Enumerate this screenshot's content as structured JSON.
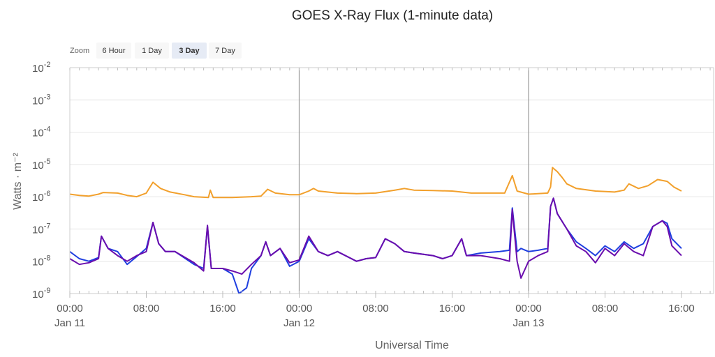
{
  "chart_data": {
    "type": "line",
    "title": "GOES X-Ray Flux (1-minute data)",
    "xlabel": "Universal Time",
    "ylabel": "Watts · m⁻²",
    "yscale": "log",
    "ylim": [
      1e-09,
      0.01
    ],
    "xlim_hours": [
      0,
      64
    ],
    "grid": true,
    "zoom": {
      "label": "Zoom",
      "buttons": [
        "6 Hour",
        "1 Day",
        "3 Day",
        "7 Day"
      ],
      "selected": "3 Day"
    },
    "x_ticks": [
      {
        "label": "00:00",
        "date": "Jan 11"
      },
      {
        "label": "08:00",
        "date": ""
      },
      {
        "label": "16:00",
        "date": ""
      },
      {
        "label": "00:00",
        "date": "Jan 12"
      },
      {
        "label": "08:00",
        "date": ""
      },
      {
        "label": "16:00",
        "date": ""
      },
      {
        "label": "00:00",
        "date": "Jan 13"
      },
      {
        "label": "08:00",
        "date": ""
      },
      {
        "label": "16:00",
        "date": ""
      }
    ],
    "y_ticks": [
      {
        "base": "10",
        "exp": "-9"
      },
      {
        "base": "10",
        "exp": "-8"
      },
      {
        "base": "10",
        "exp": "-7"
      },
      {
        "base": "10",
        "exp": "-6"
      },
      {
        "base": "10",
        "exp": "-5"
      },
      {
        "base": "10",
        "exp": "-4"
      },
      {
        "base": "10",
        "exp": "-3"
      },
      {
        "base": "10",
        "exp": "-2"
      }
    ],
    "day_markers_hours": [
      24,
      48
    ],
    "series": [
      {
        "color": "#f2a02c",
        "points": [
          [
            0,
            1.2e-06
          ],
          [
            1,
            1.1e-06
          ],
          [
            2,
            1.05e-06
          ],
          [
            3,
            1.2e-06
          ],
          [
            3.5,
            1.35e-06
          ],
          [
            5,
            1.3e-06
          ],
          [
            6,
            1.1e-06
          ],
          [
            7,
            1e-06
          ],
          [
            8,
            1.3e-06
          ],
          [
            8.7,
            2.8e-06
          ],
          [
            9.5,
            1.8e-06
          ],
          [
            10.5,
            1.4e-06
          ],
          [
            12,
            1.15e-06
          ],
          [
            13,
            1e-06
          ],
          [
            14.5,
            9.5e-07
          ],
          [
            14.7,
            1.6e-06
          ],
          [
            15,
            9.5e-07
          ],
          [
            17,
            9.5e-07
          ],
          [
            19,
            1e-06
          ],
          [
            20,
            1.05e-06
          ],
          [
            20.7,
            1.7e-06
          ],
          [
            21.5,
            1.3e-06
          ],
          [
            23,
            1.15e-06
          ],
          [
            24,
            1.15e-06
          ],
          [
            25,
            1.5e-06
          ],
          [
            25.5,
            1.8e-06
          ],
          [
            26,
            1.5e-06
          ],
          [
            28,
            1.3e-06
          ],
          [
            30,
            1.25e-06
          ],
          [
            32,
            1.3e-06
          ],
          [
            34,
            1.6e-06
          ],
          [
            35,
            1.8e-06
          ],
          [
            36,
            1.6e-06
          ],
          [
            38,
            1.55e-06
          ],
          [
            40,
            1.5e-06
          ],
          [
            42,
            1.3e-06
          ],
          [
            44,
            1.3e-06
          ],
          [
            45.5,
            1.3e-06
          ],
          [
            46.3,
            4.5e-06
          ],
          [
            46.8,
            1.5e-06
          ],
          [
            48,
            1.2e-06
          ],
          [
            50,
            1.3e-06
          ],
          [
            50.3,
            2e-06
          ],
          [
            50.5,
            8e-06
          ],
          [
            51,
            6e-06
          ],
          [
            51.5,
            4e-06
          ],
          [
            52,
            2.5e-06
          ],
          [
            53,
            1.8e-06
          ],
          [
            55,
            1.5e-06
          ],
          [
            57,
            1.4e-06
          ],
          [
            58,
            1.6e-06
          ],
          [
            58.5,
            2.5e-06
          ],
          [
            59.5,
            1.8e-06
          ],
          [
            60.5,
            2.2e-06
          ],
          [
            61.5,
            3.4e-06
          ],
          [
            62.5,
            3e-06
          ],
          [
            63.2,
            2e-06
          ],
          [
            64,
            1.5e-06
          ]
        ]
      },
      {
        "color": "#1f3fe0",
        "points": [
          [
            0,
            2e-08
          ],
          [
            1,
            1.2e-08
          ],
          [
            2,
            1e-08
          ],
          [
            3,
            1.3e-08
          ],
          [
            3.3,
            6e-08
          ],
          [
            4,
            2.5e-08
          ],
          [
            5,
            2e-08
          ],
          [
            6,
            8e-09
          ],
          [
            7,
            1.4e-08
          ],
          [
            8,
            2.5e-08
          ],
          [
            8.7,
            1.6e-07
          ],
          [
            9.3,
            3.5e-08
          ],
          [
            10,
            2e-08
          ],
          [
            11,
            2e-08
          ],
          [
            13,
            8e-09
          ],
          [
            14,
            6e-09
          ],
          [
            14.4,
            1.2e-07
          ],
          [
            14.8,
            6e-09
          ],
          [
            16,
            6e-09
          ],
          [
            17,
            4e-09
          ],
          [
            17.7,
            1e-09
          ],
          [
            18.5,
            1.5e-09
          ],
          [
            19,
            6e-09
          ],
          [
            20,
            1.5e-08
          ],
          [
            20.5,
            4e-08
          ],
          [
            21,
            1.5e-08
          ],
          [
            22,
            2.5e-08
          ],
          [
            23,
            7e-09
          ],
          [
            24,
            1e-08
          ],
          [
            25,
            5e-08
          ],
          [
            26,
            2e-08
          ],
          [
            27,
            1.5e-08
          ],
          [
            28,
            2e-08
          ],
          [
            30,
            1e-08
          ],
          [
            31,
            1.2e-08
          ],
          [
            32,
            1.3e-08
          ],
          [
            33,
            5e-08
          ],
          [
            34,
            3.5e-08
          ],
          [
            35,
            2e-08
          ],
          [
            36,
            1.8e-08
          ],
          [
            38,
            1.5e-08
          ],
          [
            39,
            1.2e-08
          ],
          [
            40,
            1.5e-08
          ],
          [
            41,
            5e-08
          ],
          [
            41.5,
            1.5e-08
          ],
          [
            43,
            1.8e-08
          ],
          [
            45,
            2e-08
          ],
          [
            46,
            2.2e-08
          ],
          [
            46.3,
            4.5e-07
          ],
          [
            46.8,
            2e-08
          ],
          [
            47.2,
            2.5e-08
          ],
          [
            48,
            2e-08
          ],
          [
            49,
            2.2e-08
          ],
          [
            50,
            2.5e-08
          ],
          [
            50.3,
            5e-07
          ],
          [
            50.6,
            9e-07
          ],
          [
            51,
            3e-07
          ],
          [
            52,
            1e-07
          ],
          [
            53,
            4e-08
          ],
          [
            54,
            2.5e-08
          ],
          [
            55,
            1.5e-08
          ],
          [
            56,
            3e-08
          ],
          [
            57,
            2e-08
          ],
          [
            58,
            4e-08
          ],
          [
            59,
            2.5e-08
          ],
          [
            60,
            3.5e-08
          ],
          [
            61,
            1.2e-07
          ],
          [
            62,
            1.8e-07
          ],
          [
            62.5,
            1.5e-07
          ],
          [
            63,
            5e-08
          ],
          [
            64,
            2.5e-08
          ]
        ]
      },
      {
        "color": "#6a0dad",
        "points": [
          [
            0,
            1.2e-08
          ],
          [
            1,
            8e-09
          ],
          [
            2,
            9e-09
          ],
          [
            3,
            1.2e-08
          ],
          [
            3.3,
            6e-08
          ],
          [
            4,
            2.5e-08
          ],
          [
            5,
            1.5e-08
          ],
          [
            6,
            1e-08
          ],
          [
            7,
            1.5e-08
          ],
          [
            8,
            2e-08
          ],
          [
            8.7,
            1.6e-07
          ],
          [
            9.3,
            3.5e-08
          ],
          [
            10,
            2e-08
          ],
          [
            11,
            2e-08
          ],
          [
            13,
            9e-09
          ],
          [
            14,
            5e-09
          ],
          [
            14.4,
            1.3e-07
          ],
          [
            14.8,
            6e-09
          ],
          [
            16,
            6e-09
          ],
          [
            17,
            5e-09
          ],
          [
            18,
            4e-09
          ],
          [
            19,
            8e-09
          ],
          [
            20,
            1.5e-08
          ],
          [
            20.5,
            4e-08
          ],
          [
            21,
            1.5e-08
          ],
          [
            22,
            2.5e-08
          ],
          [
            23,
            9e-09
          ],
          [
            24,
            1.1e-08
          ],
          [
            25,
            6e-08
          ],
          [
            26,
            2e-08
          ],
          [
            27,
            1.5e-08
          ],
          [
            28,
            2e-08
          ],
          [
            30,
            1e-08
          ],
          [
            31,
            1.2e-08
          ],
          [
            32,
            1.3e-08
          ],
          [
            33,
            5e-08
          ],
          [
            34,
            3.5e-08
          ],
          [
            35,
            2e-08
          ],
          [
            36,
            1.8e-08
          ],
          [
            38,
            1.5e-08
          ],
          [
            39,
            1.2e-08
          ],
          [
            40,
            1.5e-08
          ],
          [
            41,
            5e-08
          ],
          [
            41.5,
            1.5e-08
          ],
          [
            43,
            1.5e-08
          ],
          [
            45,
            1.2e-08
          ],
          [
            46,
            1e-08
          ],
          [
            46.3,
            4e-07
          ],
          [
            46.8,
            1e-08
          ],
          [
            47.2,
            3e-09
          ],
          [
            48,
            1e-08
          ],
          [
            49,
            1.5e-08
          ],
          [
            50,
            2e-08
          ],
          [
            50.3,
            5e-07
          ],
          [
            50.6,
            9e-07
          ],
          [
            51,
            3e-07
          ],
          [
            52,
            1e-07
          ],
          [
            53,
            3e-08
          ],
          [
            54,
            2e-08
          ],
          [
            55,
            9e-09
          ],
          [
            56,
            2.5e-08
          ],
          [
            57,
            1.5e-08
          ],
          [
            58,
            3.5e-08
          ],
          [
            59,
            2e-08
          ],
          [
            60,
            1.5e-08
          ],
          [
            61,
            1.2e-07
          ],
          [
            62,
            1.8e-07
          ],
          [
            62.5,
            1.2e-07
          ],
          [
            63,
            3e-08
          ],
          [
            64,
            1.5e-08
          ]
        ]
      }
    ]
  }
}
